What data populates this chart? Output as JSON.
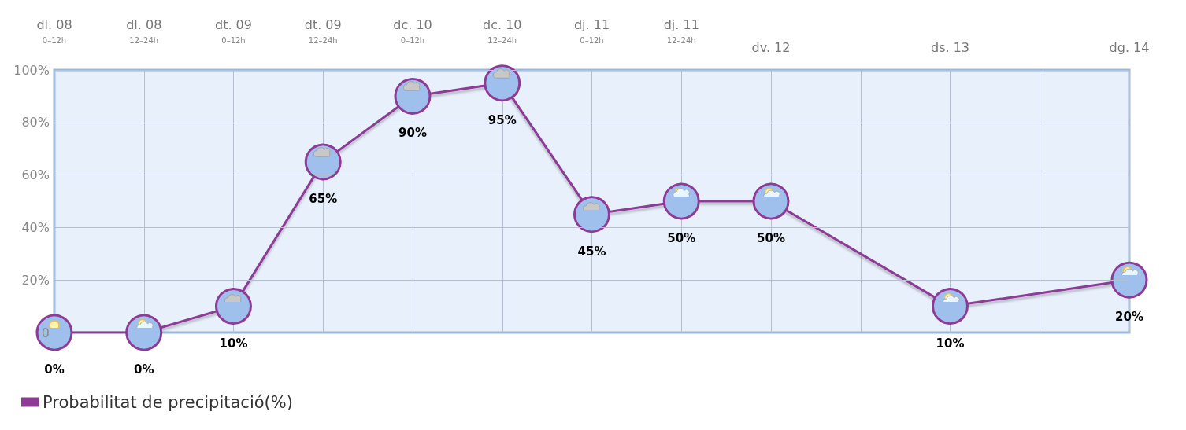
{
  "chart_data": {
    "type": "line",
    "categories": [
      "dl. 08\n0–12h",
      "dl. 08\n12–24h",
      "dt. 09\n0–12h",
      "dt. 09\n12–24h",
      "dc. 10\n0–12h",
      "dc. 10\n12–24h",
      "dj. 11\n0–12h",
      "dj. 11\n12–24h",
      "dv. 12",
      null,
      "ds. 13",
      null,
      "dg. 14"
    ],
    "series": [
      {
        "name": "Probabilitat de precipitació(%)",
        "color": "#8e3a96",
        "values": [
          0,
          0,
          10,
          65,
          90,
          95,
          45,
          50,
          50,
          null,
          10,
          null,
          20
        ],
        "value_labels": [
          "0%",
          "0%",
          "10%",
          "65%",
          "90%",
          "95%",
          "45%",
          "50%",
          "50%",
          null,
          "10%",
          null,
          "20%"
        ]
      }
    ],
    "ylim": [
      0,
      100
    ],
    "yticks": [
      {
        "value": 0,
        "label": "0"
      },
      {
        "value": 20,
        "label": "20%"
      },
      {
        "value": 40,
        "label": "40%"
      },
      {
        "value": 60,
        "label": "60%"
      },
      {
        "value": 80,
        "label": "80%"
      },
      {
        "value": 100,
        "label": "100%"
      }
    ],
    "grid": true,
    "legend": "bottom left",
    "marker": "circle",
    "line_style": "solid"
  }
}
